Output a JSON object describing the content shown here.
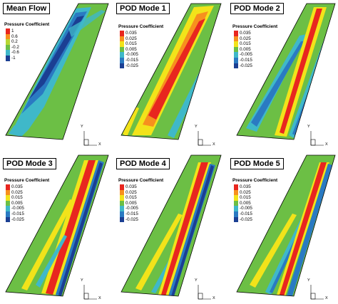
{
  "panels": [
    {
      "title": "Mean Flow",
      "legend_title": "Pressure Coefficient",
      "levels": [
        "1",
        "0.6",
        "0.2",
        "-0.2",
        "-0.6",
        "-1"
      ]
    },
    {
      "title": "POD Mode 1",
      "legend_title": "Pressure Coefficient",
      "levels": [
        "0.035",
        "0.025",
        "0.015",
        "0.005",
        "-0.005",
        "-0.015",
        "-0.025"
      ]
    },
    {
      "title": "POD Mode 2",
      "legend_title": "Pressure Coefficient",
      "levels": [
        "0.035",
        "0.025",
        "0.015",
        "0.005",
        "-0.005",
        "-0.015",
        "-0.025"
      ]
    },
    {
      "title": "POD Mode 3",
      "legend_title": "Pressure Coefficient",
      "levels": [
        "0.035",
        "0.025",
        "0.015",
        "0.005",
        "-0.005",
        "-0.015",
        "-0.025"
      ]
    },
    {
      "title": "POD Mode 4",
      "legend_title": "Pressure Coefficient",
      "levels": [
        "0.035",
        "0.025",
        "0.015",
        "0.005",
        "-0.005",
        "-0.015",
        "-0.025"
      ]
    },
    {
      "title": "POD Mode 5",
      "legend_title": "Pressure Coefficient",
      "levels": [
        "0.035",
        "0.025",
        "0.015",
        "0.005",
        "-0.005",
        "-0.015",
        "-0.025"
      ]
    }
  ],
  "axis_labels": {
    "y": "Y",
    "x": "X"
  },
  "colors": {
    "red": "#e8261f",
    "orange": "#f7901e",
    "yellow": "#f2e31a",
    "green": "#6cbf45",
    "cyan": "#3fb8c9",
    "blue": "#2a7ac2",
    "navy": "#1b3f93"
  }
}
